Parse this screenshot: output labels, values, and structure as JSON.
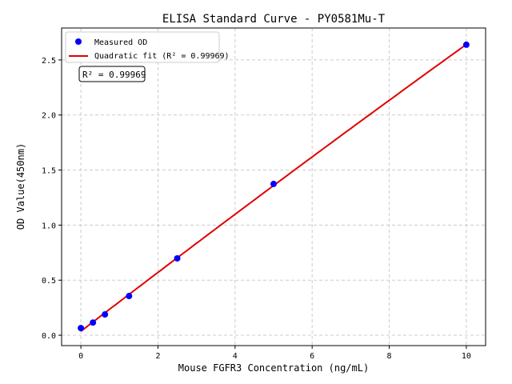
{
  "chart_data": {
    "type": "scatter",
    "title": "ELISA Standard Curve - PY0581Mu-T",
    "xlabel": "Mouse FGFR3 Concentration (ng/mL)",
    "ylabel": "OD Value(450nm)",
    "xlim": [
      -0.5,
      10.5
    ],
    "ylim": [
      -0.094,
      2.79
    ],
    "xticks": [
      0,
      2,
      4,
      6,
      8,
      10
    ],
    "yticks": [
      0.0,
      0.5,
      1.0,
      1.5,
      2.0,
      2.5
    ],
    "xtick_labels": [
      "0",
      "2",
      "4",
      "6",
      "8",
      "10"
    ],
    "ytick_labels": [
      "0.0",
      "0.5",
      "1.0",
      "1.5",
      "2.0",
      "2.5"
    ],
    "grid": true,
    "legend_position": "top-left",
    "series": [
      {
        "name": "Measured OD",
        "kind": "scatter",
        "color": "#0000ff",
        "x": [
          0,
          0.3125,
          0.625,
          1.25,
          2.5,
          5,
          10
        ],
        "y": [
          0.065,
          0.115,
          0.189,
          0.356,
          0.698,
          1.374,
          2.638
        ]
      },
      {
        "name": "Quadratic fit (R² = 0.99969)",
        "kind": "line",
        "color": "#e00000",
        "fit": "quadratic"
      }
    ],
    "annotation": "R² = 0.99969"
  }
}
